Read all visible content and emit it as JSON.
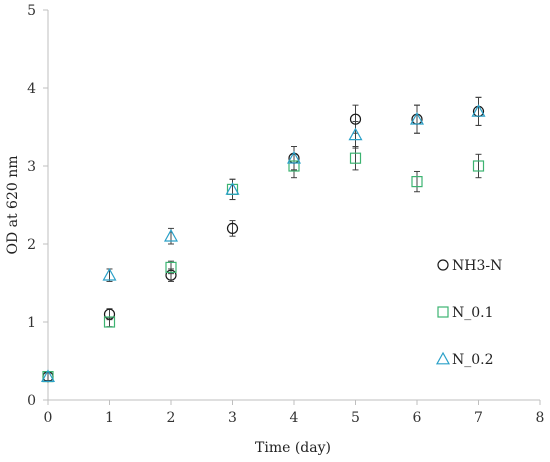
{
  "chart_data": {
    "type": "scatter",
    "xlabel": "Time (day)",
    "ylabel": "OD at 620 nm",
    "xlim": [
      0,
      8
    ],
    "ylim": [
      0,
      5
    ],
    "xticks": [
      0,
      1,
      2,
      3,
      4,
      5,
      6,
      7,
      8
    ],
    "yticks": [
      0,
      1,
      2,
      3,
      4,
      5
    ],
    "grid": false,
    "legend_position": "right",
    "series": [
      {
        "name": "NH3-N",
        "marker": "circle",
        "color": "#1a1a1a",
        "x": [
          0,
          1,
          2,
          3,
          4,
          5,
          6,
          7
        ],
        "y": [
          0.3,
          1.1,
          1.6,
          2.2,
          3.1,
          3.6,
          3.6,
          3.7
        ],
        "err": [
          0.05,
          0.07,
          0.08,
          0.1,
          0.15,
          0.18,
          0.18,
          0.18
        ]
      },
      {
        "name": "N_0.1",
        "marker": "square",
        "color": "#3cb371",
        "x": [
          0,
          1,
          2,
          3,
          4,
          5,
          6,
          7
        ],
        "y": [
          0.3,
          1.0,
          1.7,
          2.7,
          3.0,
          3.1,
          2.8,
          3.0
        ],
        "err": [
          0.05,
          0.06,
          0.08,
          0.13,
          0.15,
          0.15,
          0.13,
          0.15
        ]
      },
      {
        "name": "N_0.2",
        "marker": "triangle",
        "color": "#2aa0c8",
        "x": [
          0,
          1,
          2,
          3,
          4,
          5,
          6,
          7
        ],
        "y": [
          0.3,
          1.6,
          2.1,
          2.7,
          3.1,
          3.4,
          3.6,
          3.7
        ],
        "err": [
          0.05,
          0.08,
          0.1,
          0.13,
          0.15,
          0.17,
          0.18,
          0.18
        ]
      }
    ]
  }
}
